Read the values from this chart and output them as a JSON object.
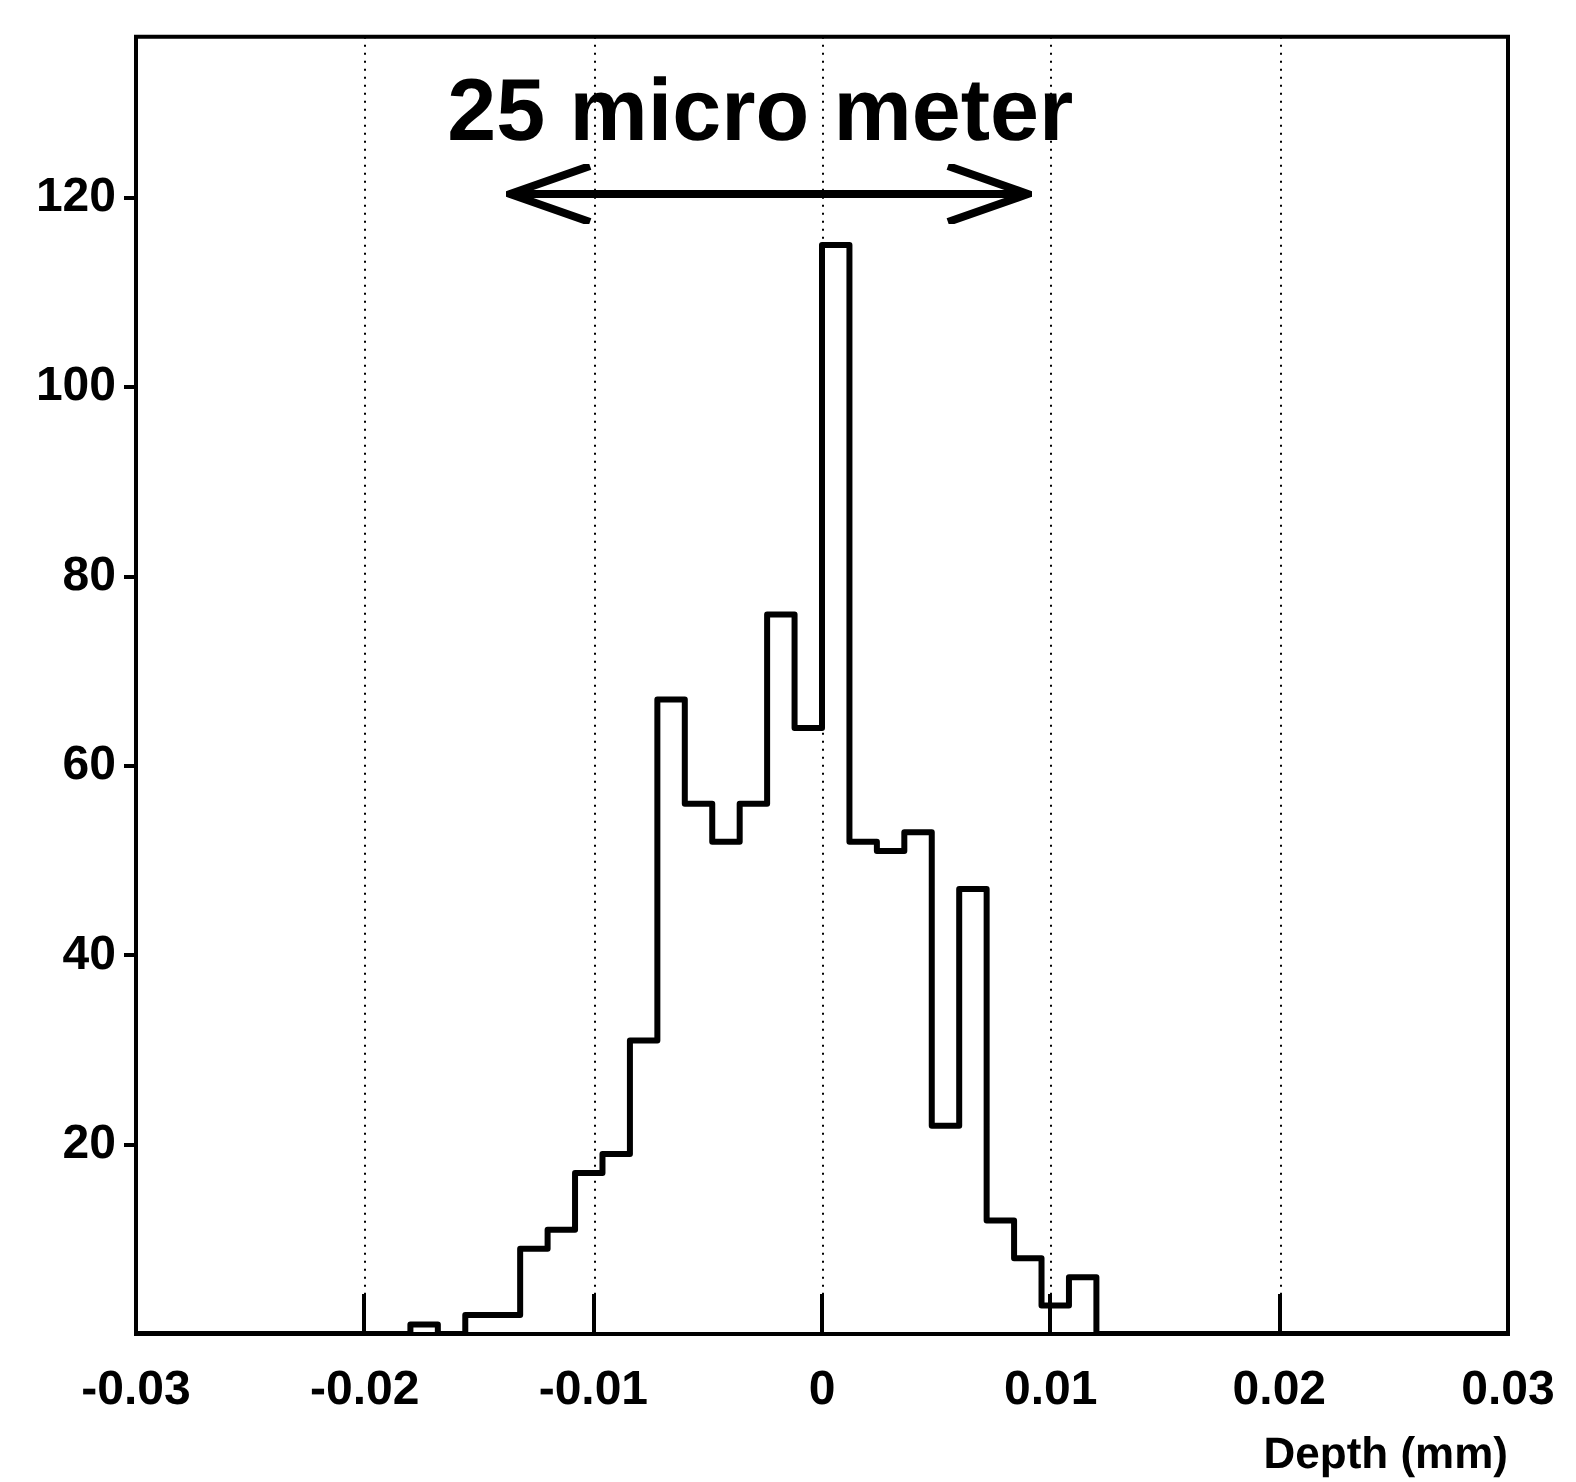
{
  "chart_data": {
    "type": "histogram",
    "xlabel": "Depth (mm)",
    "bins": [
      -0.03,
      -0.0288,
      -0.0276,
      -0.0264,
      -0.0252,
      -0.024,
      -0.0228,
      -0.0216,
      -0.0204,
      -0.0192,
      -0.018,
      -0.0168,
      -0.0156,
      -0.0144,
      -0.0132,
      -0.012,
      -0.0108,
      -0.0096,
      -0.0084,
      -0.0072,
      -0.006,
      -0.0048,
      -0.0036,
      -0.0024,
      -0.0012,
      0,
      0.0012,
      0.0024,
      0.0036,
      0.0048,
      0.006,
      0.0072,
      0.0084,
      0.0096,
      0.0108,
      0.012,
      0.0132,
      0.0144,
      0.0156,
      0.0168,
      0.018,
      0.0192,
      0.0204,
      0.0216,
      0.0228,
      0.024,
      0.0252,
      0.0264,
      0.0276,
      0.0288,
      0.03
    ],
    "values": [
      0,
      0,
      0,
      0,
      0,
      0,
      0,
      0,
      0,
      0,
      1,
      0,
      2,
      2,
      9,
      11,
      17,
      19,
      31,
      67,
      56,
      52,
      56,
      76,
      64,
      115,
      52,
      51,
      53,
      22,
      47,
      12,
      8,
      3,
      6,
      0,
      0,
      0,
      0,
      0,
      0,
      0,
      0,
      0,
      0,
      0,
      0,
      0,
      0,
      0
    ],
    "color": "#000000",
    "xlim": [
      -0.03,
      0.03
    ],
    "xticks": [
      -0.03,
      -0.02,
      -0.01,
      0,
      0.01,
      0.02,
      0.03
    ],
    "ylim": [
      0,
      137
    ],
    "yticks": [
      20,
      40,
      60,
      80,
      100,
      120
    ],
    "grid": "x",
    "annotations": [
      "25 micro meter"
    ]
  }
}
